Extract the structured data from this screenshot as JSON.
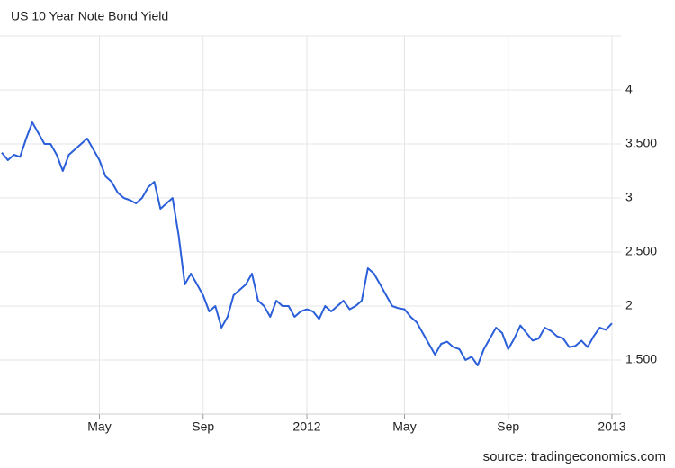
{
  "chart_data": {
    "type": "line",
    "title": "US 10 Year Note Bond Yield",
    "source": "source: tradingeconomics.com",
    "categories": [
      null,
      null,
      null,
      null,
      null,
      null,
      null,
      null,
      null,
      null,
      null,
      null,
      null,
      null,
      null,
      null,
      "May",
      null,
      null,
      null,
      null,
      null,
      null,
      null,
      null,
      null,
      null,
      null,
      null,
      null,
      null,
      null,
      null,
      "Sep",
      null,
      null,
      null,
      null,
      null,
      null,
      null,
      null,
      null,
      null,
      null,
      null,
      null,
      null,
      null,
      null,
      "2012",
      null,
      null,
      null,
      null,
      null,
      null,
      null,
      null,
      null,
      null,
      null,
      null,
      null,
      null,
      null,
      "May",
      null,
      null,
      null,
      null,
      null,
      null,
      null,
      null,
      null,
      null,
      null,
      null,
      null,
      null,
      null,
      null,
      "Sep",
      null,
      null,
      null,
      null,
      null,
      null,
      null,
      null,
      null,
      null,
      null,
      null,
      null,
      null,
      null,
      null,
      "2013"
    ],
    "series": [
      {
        "name": "US 10 Year Note Bond Yield",
        "color": "#2b5fd9",
        "values": [
          3.42,
          3.35,
          3.4,
          3.38,
          3.55,
          3.7,
          3.6,
          3.5,
          3.5,
          3.4,
          3.25,
          3.4,
          3.45,
          3.5,
          3.55,
          3.45,
          3.35,
          3.2,
          3.15,
          3.05,
          3.0,
          2.98,
          2.95,
          3.0,
          3.1,
          3.15,
          2.9,
          2.95,
          3.0,
          2.65,
          2.2,
          2.3,
          2.2,
          2.1,
          1.95,
          2.0,
          1.8,
          1.9,
          2.1,
          2.15,
          2.2,
          2.3,
          2.05,
          2.0,
          1.9,
          2.05,
          2.0,
          2.0,
          1.9,
          1.95,
          1.97,
          1.95,
          1.88,
          2.0,
          1.95,
          2.0,
          2.05,
          1.97,
          2.0,
          2.05,
          2.35,
          2.3,
          2.2,
          2.1,
          2.0,
          1.98,
          1.97,
          1.9,
          1.85,
          1.75,
          1.65,
          1.55,
          1.65,
          1.67,
          1.62,
          1.6,
          1.5,
          1.53,
          1.45,
          1.6,
          1.7,
          1.8,
          1.75,
          1.6,
          1.7,
          1.82,
          1.75,
          1.68,
          1.7,
          1.8,
          1.77,
          1.72,
          1.7,
          1.62,
          1.63,
          1.68,
          1.62,
          1.72,
          1.8,
          1.78,
          1.84
        ]
      }
    ],
    "ylim": [
      1,
      4.5
    ],
    "yticks": [
      {
        "value": 1.5,
        "label": "1.500"
      },
      2,
      {
        "value": 2.5,
        "label": "2.500"
      },
      3,
      {
        "value": 3.5,
        "label": "3.500"
      },
      4
    ],
    "grid": true
  }
}
